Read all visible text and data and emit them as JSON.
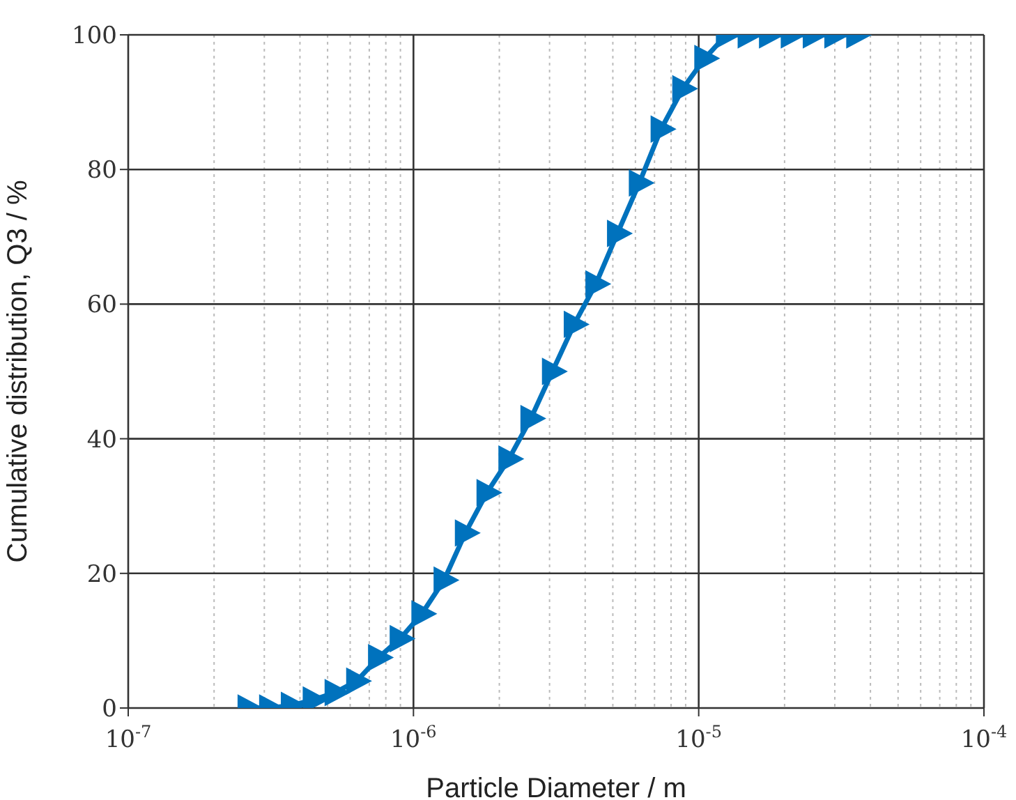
{
  "chart_data": {
    "type": "line",
    "xlabel": "Particle Diameter / m",
    "ylabel": "Cumulative distribution, Q3 / %",
    "x": [
      2.63e-07,
      3.13e-07,
      3.73e-07,
      4.45e-07,
      5.31e-07,
      6.32e-07,
      7.54e-07,
      8.98e-07,
      1.07e-06,
      1.28e-06,
      1.52e-06,
      1.81e-06,
      2.16e-06,
      2.58e-06,
      3.07e-06,
      3.66e-06,
      4.36e-06,
      5.19e-06,
      6.19e-06,
      7.38e-06,
      8.79e-06,
      1.05e-05,
      1.25e-05,
      1.49e-05,
      1.77e-05,
      2.11e-05,
      2.52e-05,
      3e-05,
      3.58e-05
    ],
    "series": [
      {
        "color": "#0072bd",
        "values": [
          0,
          0,
          0.4,
          1.2,
          2.3,
          4,
          7.5,
          10.3,
          14,
          19,
          26,
          32,
          37,
          43,
          50,
          57,
          63,
          70.5,
          78,
          86,
          92,
          96.5,
          100,
          100,
          100,
          100,
          100,
          100,
          100
        ]
      }
    ],
    "xlim": [
      1e-07,
      0.0001
    ],
    "xticks": [
      {
        "value": 1e-07,
        "label": "10$^{-7}$"
      },
      {
        "value": 1e-06,
        "label": "10$^{-6}$"
      },
      {
        "value": 1e-05,
        "label": "10$^{-5}$"
      },
      {
        "value": 0.0001,
        "label": "10$^{-4}$"
      }
    ],
    "ylim": [
      0,
      100
    ],
    "yticks": [
      0,
      20,
      40,
      60,
      80,
      100
    ],
    "log": "x",
    "grid": true,
    "marker": "triangle",
    "line_style": "solid"
  }
}
